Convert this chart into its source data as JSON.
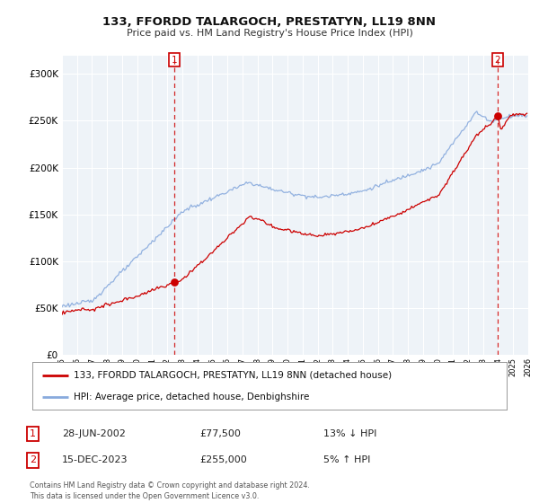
{
  "title": "133, FFORDD TALARGOCH, PRESTATYN, LL19 8NN",
  "subtitle": "Price paid vs. HM Land Registry's House Price Index (HPI)",
  "legend_line1": "133, FFORDD TALARGOCH, PRESTATYN, LL19 8NN (detached house)",
  "legend_line2": "HPI: Average price, detached house, Denbighshire",
  "annotation1_label": "1",
  "annotation1_date": "28-JUN-2002",
  "annotation1_price": "£77,500",
  "annotation1_hpi": "13% ↓ HPI",
  "annotation2_label": "2",
  "annotation2_date": "15-DEC-2023",
  "annotation2_price": "£255,000",
  "annotation2_hpi": "5% ↑ HPI",
  "footer": "Contains HM Land Registry data © Crown copyright and database right 2024.\nThis data is licensed under the Open Government Licence v3.0.",
  "house_color": "#cc0000",
  "hpi_color": "#88aadd",
  "plot_bg": "#eef3f8",
  "background_color": "#ffffff",
  "grid_color": "#ffffff",
  "ylim": [
    0,
    320000
  ],
  "yticks": [
    0,
    50000,
    100000,
    150000,
    200000,
    250000,
    300000
  ],
  "ytick_labels": [
    "£0",
    "£50K",
    "£100K",
    "£150K",
    "£200K",
    "£250K",
    "£300K"
  ],
  "xstart_year": 1995,
  "xend_year": 2026,
  "sale1_year": 2002.49,
  "sale1_price": 77500,
  "sale2_year": 2023.96,
  "sale2_price": 255000
}
